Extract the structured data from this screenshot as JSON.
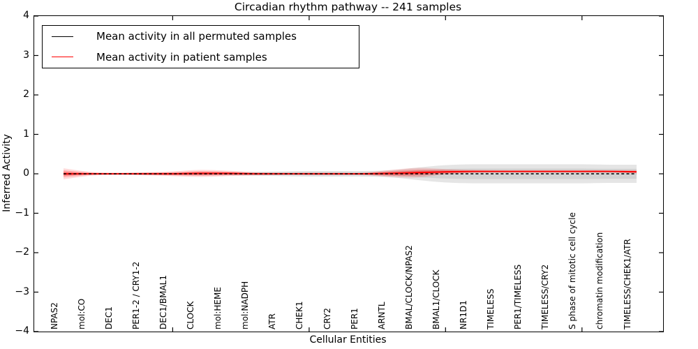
{
  "chart_data": {
    "type": "line",
    "title": "Circadian rhythm pathway -- 241 samples",
    "xlabel": "Cellular Entities",
    "ylabel": "Inferred Activity",
    "ylim": [
      -4,
      4
    ],
    "ytick_values": [
      4,
      3,
      2,
      1,
      0,
      -1,
      -2,
      -3,
      -4
    ],
    "ytick_labels": [
      "4",
      "3",
      "2",
      "1",
      "0",
      "−1",
      "−2",
      "−3",
      "−4"
    ],
    "grid": false,
    "legend_position": "upper left",
    "categories": [
      "NPAS2",
      "mol:CO",
      "DEC1",
      "PER1-2 / CRY1-2",
      "DEC1/BMAL1",
      "CLOCK",
      "mol:HEME",
      "mol:NADPH",
      "ATR",
      "CHEK1",
      "CRY2",
      "PER1",
      "ARNTL",
      "BMAL/CLOCK/NPAS2",
      "BMAL1/CLOCK",
      "NR1D1",
      "TIMELESS",
      "PER1/TIMELESS",
      "TIMELESS/CRY2",
      "S phase of mitotic cell cycle",
      "chromatin modification",
      "TIMELESS/CHEK1/ATR"
    ],
    "xticks_at_category_index": [
      4,
      9,
      14,
      19
    ],
    "series": [
      {
        "name": "Mean activity in all permuted samples",
        "color": "#000000",
        "line_style": "dashed",
        "band_color": "#bdbdbd",
        "values": [
          0,
          0,
          0,
          0,
          0,
          0,
          0,
          0,
          0,
          0,
          0,
          0,
          0,
          0,
          0,
          0,
          0,
          0,
          0,
          0,
          0,
          0
        ],
        "band_halfwidth": [
          0.02,
          0.02,
          0.02,
          0.03,
          0.03,
          0.04,
          0.04,
          0.05,
          0.06,
          0.07,
          0.07,
          0.07,
          0.09,
          0.16,
          0.22,
          0.24,
          0.24,
          0.24,
          0.24,
          0.24,
          0.23,
          0.23
        ]
      },
      {
        "name": "Mean activity in patient samples",
        "color": "#ff0000",
        "line_style": "solid",
        "band_color": "#ff0000",
        "values": [
          0,
          0,
          0,
          0,
          0,
          0.01,
          0.01,
          0,
          0,
          0,
          0,
          0,
          0.01,
          0.03,
          0.05,
          0.06,
          0.06,
          0.06,
          0.06,
          0.06,
          0.06,
          0.05
        ],
        "band_halfwidth": [
          0.14,
          0.05,
          0.03,
          0.04,
          0.06,
          0.09,
          0.07,
          0.04,
          0.03,
          0.03,
          0.03,
          0.03,
          0.09,
          0.12,
          0.07,
          0.04,
          0.03,
          0.03,
          0.03,
          0.03,
          0.03,
          0.04
        ]
      }
    ]
  },
  "legend": {
    "entries": [
      {
        "label": "Mean activity in all permuted samples",
        "color": "#000000"
      },
      {
        "label": "Mean activity in patient samples",
        "color": "#ff0000"
      }
    ]
  }
}
